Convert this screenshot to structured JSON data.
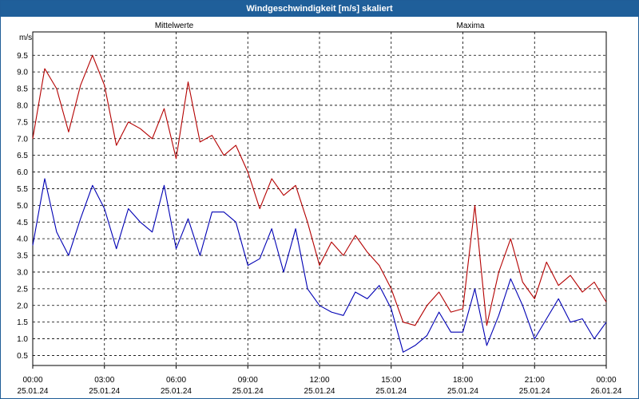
{
  "window": {
    "title": "Windgeschwindigkeit [m/s] skaliert"
  },
  "chart_data": {
    "type": "line",
    "title": "Windgeschwindigkeit [m/s] skaliert",
    "ylabel": "m/s",
    "xlabel": "",
    "ylim": [
      0.2,
      10.2
    ],
    "y_ticks": [
      0.5,
      1.0,
      1.5,
      2.0,
      2.5,
      3.0,
      3.5,
      4.0,
      4.5,
      5.0,
      5.5,
      6.0,
      6.5,
      7.0,
      7.5,
      8.0,
      8.5,
      9.0,
      9.5
    ],
    "y_tick_labels": [
      "0.5",
      "1.0",
      "1.5",
      "2.0",
      "2.5",
      "3.0",
      "3.5",
      "4.0",
      "4.5",
      "5.0",
      "5.5",
      "6.0",
      "6.5",
      "7.0",
      "7.5",
      "8.0",
      "8.5",
      "9.0",
      "9.5"
    ],
    "x_ticks": [
      {
        "time": "00:00",
        "date": "25.01.24"
      },
      {
        "time": "03:00",
        "date": "25.01.24"
      },
      {
        "time": "06:00",
        "date": "25.01.24"
      },
      {
        "time": "09:00",
        "date": "25.01.24"
      },
      {
        "time": "12:00",
        "date": "25.01.24"
      },
      {
        "time": "15:00",
        "date": "25.01.24"
      },
      {
        "time": "18:00",
        "date": "25.01.24"
      },
      {
        "time": "21:00",
        "date": "25.01.24"
      },
      {
        "time": "00:00",
        "date": "26.01.24"
      }
    ],
    "x_range_hours": [
      0,
      24
    ],
    "grid": true,
    "grid_style": "dashed",
    "legend_placement": "top",
    "series": [
      {
        "name": "Mittelwerte",
        "color": "#0000b4",
        "x_hours": [
          0.0,
          0.5,
          1.0,
          1.5,
          2.0,
          2.5,
          3.0,
          3.5,
          4.0,
          4.5,
          5.0,
          5.5,
          6.0,
          6.5,
          7.0,
          7.5,
          8.0,
          8.5,
          9.0,
          9.5,
          10.0,
          10.5,
          11.0,
          11.5,
          12.0,
          12.5,
          13.0,
          13.5,
          14.0,
          14.5,
          15.0,
          15.5,
          16.0,
          16.5,
          17.0,
          17.5,
          18.0,
          18.5,
          19.0,
          19.5,
          20.0,
          20.5,
          21.0,
          21.5,
          22.0,
          22.5,
          23.0,
          23.5,
          24.0
        ],
        "values": [
          3.8,
          5.8,
          4.2,
          3.5,
          4.6,
          5.6,
          4.9,
          3.7,
          4.9,
          4.5,
          4.2,
          5.6,
          3.7,
          4.6,
          3.5,
          4.8,
          4.8,
          4.5,
          3.2,
          3.4,
          4.3,
          3.0,
          4.3,
          2.5,
          2.0,
          1.8,
          1.7,
          2.4,
          2.2,
          2.6,
          1.9,
          0.6,
          0.8,
          1.1,
          1.8,
          1.2,
          1.2,
          2.5,
          0.8,
          1.7,
          2.8,
          2.0,
          1.0,
          1.6,
          2.2,
          1.5,
          1.6,
          1.0,
          1.5
        ]
      },
      {
        "name": "Maxima",
        "color": "#b40000",
        "x_hours": [
          0.0,
          0.5,
          1.0,
          1.5,
          2.0,
          2.5,
          3.0,
          3.5,
          4.0,
          4.5,
          5.0,
          5.5,
          6.0,
          6.5,
          7.0,
          7.5,
          8.0,
          8.5,
          9.0,
          9.5,
          10.0,
          10.5,
          11.0,
          11.5,
          12.0,
          12.5,
          13.0,
          13.5,
          14.0,
          14.5,
          15.0,
          15.5,
          16.0,
          16.5,
          17.0,
          17.5,
          18.0,
          18.5,
          19.0,
          19.5,
          20.0,
          20.5,
          21.0,
          21.5,
          22.0,
          22.5,
          23.0,
          23.5,
          24.0
        ],
        "values": [
          7.0,
          9.1,
          8.5,
          7.2,
          8.6,
          9.5,
          8.6,
          6.8,
          7.5,
          7.3,
          7.0,
          7.9,
          6.4,
          8.7,
          6.9,
          7.1,
          6.5,
          6.8,
          6.0,
          4.9,
          5.8,
          5.3,
          5.6,
          4.5,
          3.2,
          3.9,
          3.5,
          4.1,
          3.6,
          3.2,
          2.5,
          1.5,
          1.4,
          2.0,
          2.4,
          1.8,
          1.9,
          5.0,
          1.4,
          3.0,
          4.0,
          2.7,
          2.2,
          3.3,
          2.6,
          2.9,
          2.4,
          2.7,
          2.1
        ]
      }
    ]
  }
}
